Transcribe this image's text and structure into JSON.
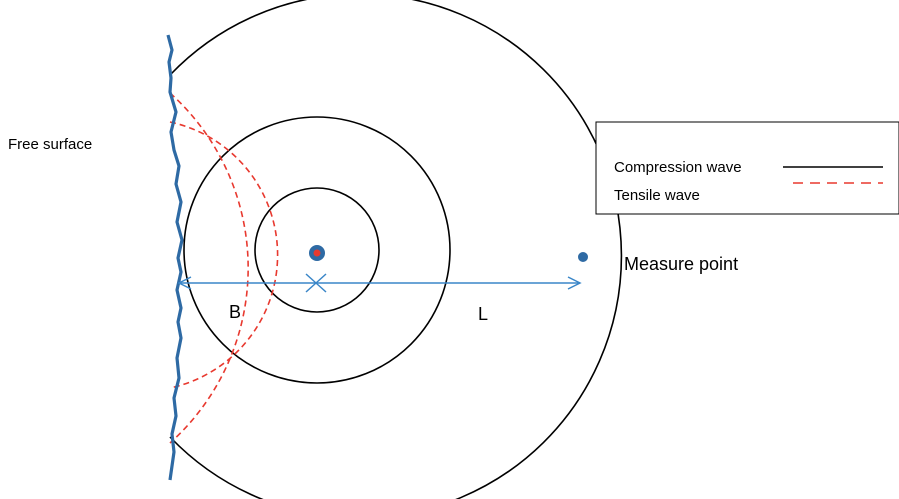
{
  "labels": {
    "free_surface": "Free surface",
    "measure_point": "Measure point",
    "segment_b": "B",
    "segment_l": "L"
  },
  "legend": {
    "compression_label": "Compression wave",
    "tensile_label": "Tensile wave"
  },
  "colors": {
    "compression_wave": "#000000",
    "tensile_wave": "#e8392f",
    "free_surface": "#2e6aa4",
    "dimension_arrow": "#3a86c8",
    "source_outer": "#2e6aa4",
    "source_inner": "#e8392f",
    "measure_point": "#2e6aa4"
  }
}
